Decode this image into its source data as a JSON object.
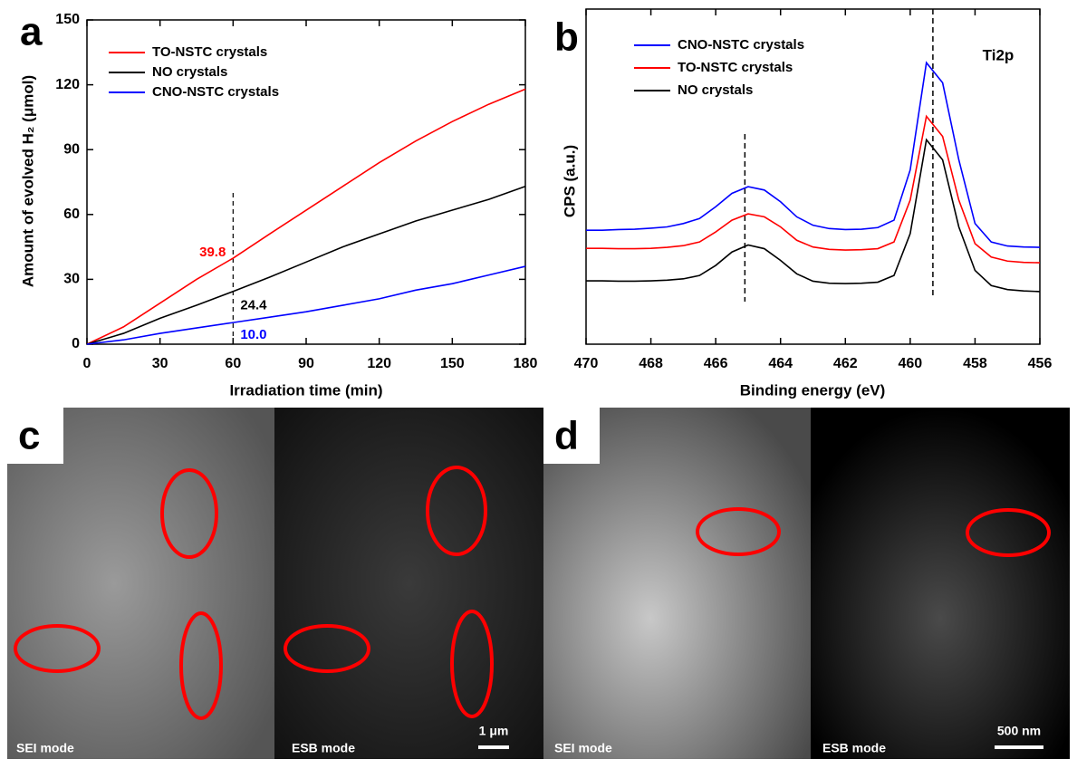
{
  "panel_labels": [
    "a",
    "b",
    "c",
    "d"
  ],
  "chart_data": [
    {
      "type": "line",
      "x_label": "Irradiation time (min)",
      "y_label": "Amount of evolved H₂ (μmol)",
      "x": [
        0,
        15,
        30,
        45,
        60,
        75,
        90,
        105,
        120,
        135,
        150,
        165,
        180
      ],
      "xlim": [
        0,
        180
      ],
      "xticks": [
        0,
        30,
        60,
        90,
        120,
        150,
        180
      ],
      "ylim": [
        0,
        150
      ],
      "yticks": [
        0,
        30,
        60,
        90,
        120,
        150
      ],
      "vline": 60,
      "legend": "upper left",
      "series": [
        {
          "name": "TO-NSTC crystals",
          "color": "#ff0000",
          "values": [
            0,
            8,
            19,
            30,
            39.8,
            51,
            62,
            73,
            84,
            94,
            103,
            111,
            118
          ],
          "value_labels": [
            null,
            null,
            null,
            null,
            "39.8",
            null,
            null,
            null,
            null,
            null,
            null,
            null,
            null
          ]
        },
        {
          "name": "NO crystals",
          "color": "#000000",
          "values": [
            0,
            5,
            12,
            18,
            24.4,
            31,
            38,
            45,
            51,
            57,
            62,
            67,
            73
          ],
          "value_labels": [
            null,
            null,
            null,
            null,
            "24.4",
            null,
            null,
            null,
            null,
            null,
            null,
            null,
            null
          ]
        },
        {
          "name": "CNO-NSTC crystals",
          "color": "#0000ff",
          "values": [
            0,
            2,
            5,
            7.5,
            10,
            12.5,
            15,
            18,
            21,
            25,
            28,
            32,
            36
          ],
          "value_labels": [
            null,
            null,
            null,
            null,
            "10.0",
            null,
            null,
            null,
            null,
            null,
            null,
            null,
            null
          ]
        }
      ]
    },
    {
      "type": "line",
      "x_label": "Binding energy (eV)",
      "y_label": "CPS (a.u.)",
      "annotation": "Ti2p",
      "x": [
        470,
        469.5,
        469,
        468.5,
        468,
        467.5,
        467,
        466.5,
        466,
        465.5,
        465,
        464.5,
        464,
        463.5,
        463,
        462.5,
        462,
        461.5,
        461,
        460.5,
        460,
        459.5,
        459,
        458.5,
        458,
        457.5,
        457,
        456.5,
        456
      ],
      "xlim": [
        470,
        456
      ],
      "xticks": [
        470,
        468,
        466,
        464,
        462,
        460,
        458,
        456
      ],
      "ylim": [
        0,
        100
      ],
      "vlines": [
        465.1,
        459.3
      ],
      "legend": "upper left",
      "series": [
        {
          "name": "CNO-NSTC crystals",
          "color": "#0000ff",
          "values": [
            34,
            34,
            34.2,
            34.3,
            34.6,
            35,
            36,
            37.5,
            41,
            45,
            47,
            46,
            42.5,
            38,
            35.5,
            34.5,
            34.2,
            34.3,
            34.8,
            37,
            52,
            84,
            78,
            55,
            36,
            30.5,
            29.3,
            29,
            28.9
          ]
        },
        {
          "name": "TO-NSTC crystals",
          "color": "#ff0000",
          "values": [
            28.6,
            28.6,
            28.5,
            28.5,
            28.6,
            28.9,
            29.4,
            30.5,
            33.5,
            37,
            38.9,
            38,
            35,
            31,
            29,
            28.3,
            28.1,
            28.2,
            28.5,
            30.5,
            43,
            68,
            62,
            43,
            30,
            26,
            24.8,
            24.4,
            24.3
          ]
        },
        {
          "name": "NO crystals",
          "color": "#000000",
          "values": [
            18.9,
            18.9,
            18.8,
            18.8,
            18.9,
            19.1,
            19.5,
            20.5,
            23.5,
            27.5,
            29.6,
            28.5,
            25,
            21,
            18.8,
            18.2,
            18.1,
            18.2,
            18.5,
            20.5,
            33,
            61,
            55,
            35,
            22,
            17.5,
            16.3,
            15.9,
            15.7
          ]
        }
      ]
    }
  ],
  "images": [
    {
      "labels": [
        "SEI mode",
        "ESB mode"
      ],
      "scale_bar": "1 μm"
    },
    {
      "labels": [
        "SEI mode",
        "ESB mode"
      ],
      "scale_bar": "500 nm"
    }
  ]
}
